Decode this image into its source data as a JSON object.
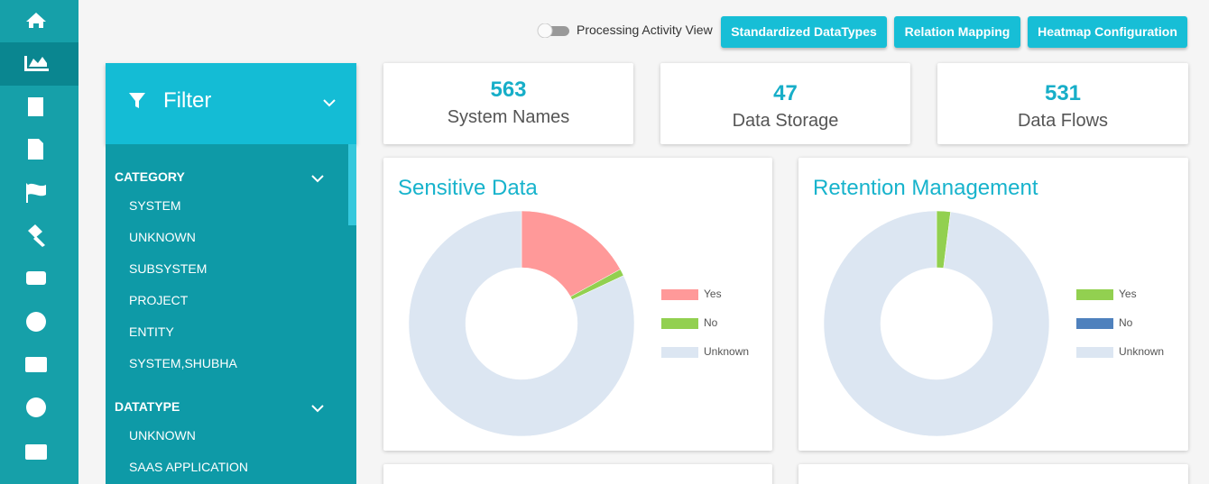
{
  "toolbar": {
    "toggle_label": "Processing Activity View",
    "buttons": [
      "Standardized DataTypes",
      "Relation Mapping",
      "Heatmap Configuration"
    ]
  },
  "filter": {
    "title": "Filter",
    "sections": [
      {
        "title": "CATEGORY",
        "items": [
          "SYSTEM",
          "UNKNOWN",
          "SUBSYSTEM",
          "PROJECT",
          "ENTITY",
          "SYSTEM,SHUBHA"
        ]
      },
      {
        "title": "DATATYPE",
        "items": [
          "UNKNOWN",
          "SAAS APPLICATION"
        ]
      }
    ]
  },
  "stats": [
    {
      "value": 563,
      "label": "System Names"
    },
    {
      "value": 47,
      "label": "Data Storage"
    },
    {
      "value": 531,
      "label": "Data Flows"
    }
  ],
  "chart_data": [
    {
      "type": "pie",
      "title": "Sensitive Data",
      "categories": [
        "Yes",
        "No",
        "Unknown"
      ],
      "values": [
        17,
        1,
        82
      ],
      "colors": [
        "#ff9999",
        "#92d050",
        "#dce6f2"
      ]
    },
    {
      "type": "pie",
      "title": "Retention Management",
      "categories": [
        "Yes",
        "No",
        "Unknown"
      ],
      "values": [
        2,
        0,
        98
      ],
      "colors": [
        "#92d050",
        "#4f81bd",
        "#dce6f2"
      ]
    }
  ]
}
